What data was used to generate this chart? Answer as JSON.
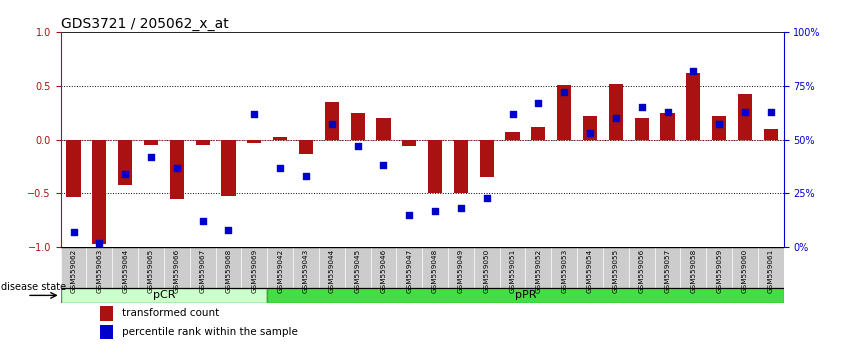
{
  "title": "GDS3721 / 205062_x_at",
  "samples": [
    "GSM559062",
    "GSM559063",
    "GSM559064",
    "GSM559065",
    "GSM559066",
    "GSM559067",
    "GSM559068",
    "GSM559069",
    "GSM559042",
    "GSM559043",
    "GSM559044",
    "GSM559045",
    "GSM559046",
    "GSM559047",
    "GSM559048",
    "GSM559049",
    "GSM559050",
    "GSM559051",
    "GSM559052",
    "GSM559053",
    "GSM559054",
    "GSM559055",
    "GSM559056",
    "GSM559057",
    "GSM559058",
    "GSM559059",
    "GSM559060",
    "GSM559061"
  ],
  "bar_values": [
    -0.53,
    -0.97,
    -0.42,
    -0.05,
    -0.55,
    -0.05,
    -0.52,
    -0.03,
    0.02,
    -0.13,
    0.35,
    0.25,
    0.2,
    -0.06,
    -0.5,
    -0.5,
    -0.35,
    0.07,
    0.12,
    0.51,
    0.22,
    0.52,
    0.2,
    0.25,
    0.62,
    0.22,
    0.42,
    0.1
  ],
  "blue_values_pct": [
    7,
    2,
    34,
    42,
    37,
    12,
    8,
    62,
    37,
    33,
    57,
    47,
    38,
    15,
    17,
    18,
    23,
    62,
    67,
    72,
    53,
    60,
    65,
    63,
    82,
    57,
    63,
    63
  ],
  "pCR_count": 8,
  "pPR_count": 20,
  "bar_color": "#aa1111",
  "blue_color": "#0000cc",
  "ylim": [
    -1.0,
    1.0
  ],
  "y2lim": [
    0,
    100
  ],
  "yticks_left": [
    -1.0,
    -0.5,
    0.0,
    0.5,
    1.0
  ],
  "yticks_right": [
    0,
    25,
    50,
    75,
    100
  ],
  "legend_red": "transformed count",
  "legend_blue": "percentile rank within the sample",
  "disease_state_label": "disease state",
  "pCR_label": "pCR",
  "pPR_label": "pPR",
  "pCR_color": "#ccffcc",
  "pPR_color": "#44dd44",
  "panel_color": "#cccccc",
  "title_fontsize": 10,
  "tick_fontsize": 7,
  "label_fontsize": 7.5
}
